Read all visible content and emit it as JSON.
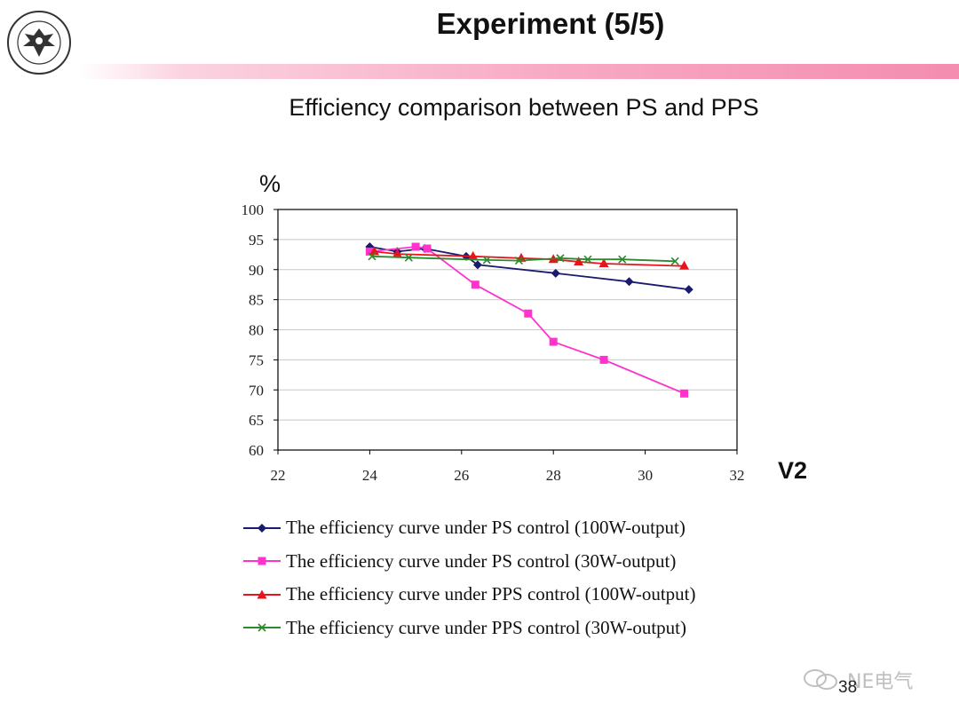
{
  "header": {
    "title": "Experiment (5/5)",
    "subtitle": "Efficiency comparison between PS and PPS",
    "bar_color": "#f48db0"
  },
  "logo": {
    "icon": "university-seal-icon"
  },
  "footer": {
    "page_number": "38",
    "watermark_text": "NE电气",
    "watermark_icon": "chat-bubbles-icon"
  },
  "chart_data": {
    "type": "line",
    "y_unit_label": "%",
    "x_unit_label": "V2",
    "xlim": [
      22,
      32
    ],
    "ylim": [
      60,
      100
    ],
    "x_ticks": [
      22,
      24,
      26,
      28,
      30,
      32
    ],
    "y_ticks": [
      60,
      65,
      70,
      75,
      80,
      85,
      90,
      95,
      100
    ],
    "grid": "horizontal",
    "legend_position": "bottom",
    "series": [
      {
        "name": "The efficiency curve under PS control (100W-output)",
        "color": "#1a1a6e",
        "marker": "diamond",
        "x": [
          24.0,
          24.6,
          25.2,
          26.1,
          26.35,
          28.05,
          29.65,
          30.95
        ],
        "y": [
          93.8,
          93.0,
          93.5,
          92.2,
          90.8,
          89.4,
          88.0,
          86.7
        ]
      },
      {
        "name": "The efficiency curve under PS control (30W-output)",
        "color": "#ff33cc",
        "marker": "square",
        "x": [
          24.0,
          25.0,
          25.25,
          26.3,
          27.45,
          28.0,
          29.1,
          30.85
        ],
        "y": [
          93.0,
          93.8,
          93.5,
          87.5,
          82.7,
          78.0,
          75.0,
          69.4
        ]
      },
      {
        "name": "The efficiency curve under PPS control (100W-output)",
        "color": "#e8141b",
        "marker": "triangle",
        "x": [
          24.1,
          24.6,
          26.25,
          27.3,
          28.0,
          28.55,
          29.1,
          30.85
        ],
        "y": [
          93.0,
          92.6,
          92.2,
          91.9,
          91.7,
          91.3,
          91.0,
          90.6
        ]
      },
      {
        "name": "The efficiency curve under PPS control (30W-output)",
        "color": "#2b8a2b",
        "marker": "x",
        "x": [
          24.05,
          24.85,
          26.55,
          27.25,
          28.15,
          28.75,
          29.5,
          30.65
        ],
        "y": [
          92.2,
          92.0,
          91.6,
          91.5,
          91.9,
          91.7,
          91.7,
          91.4
        ]
      }
    ]
  }
}
